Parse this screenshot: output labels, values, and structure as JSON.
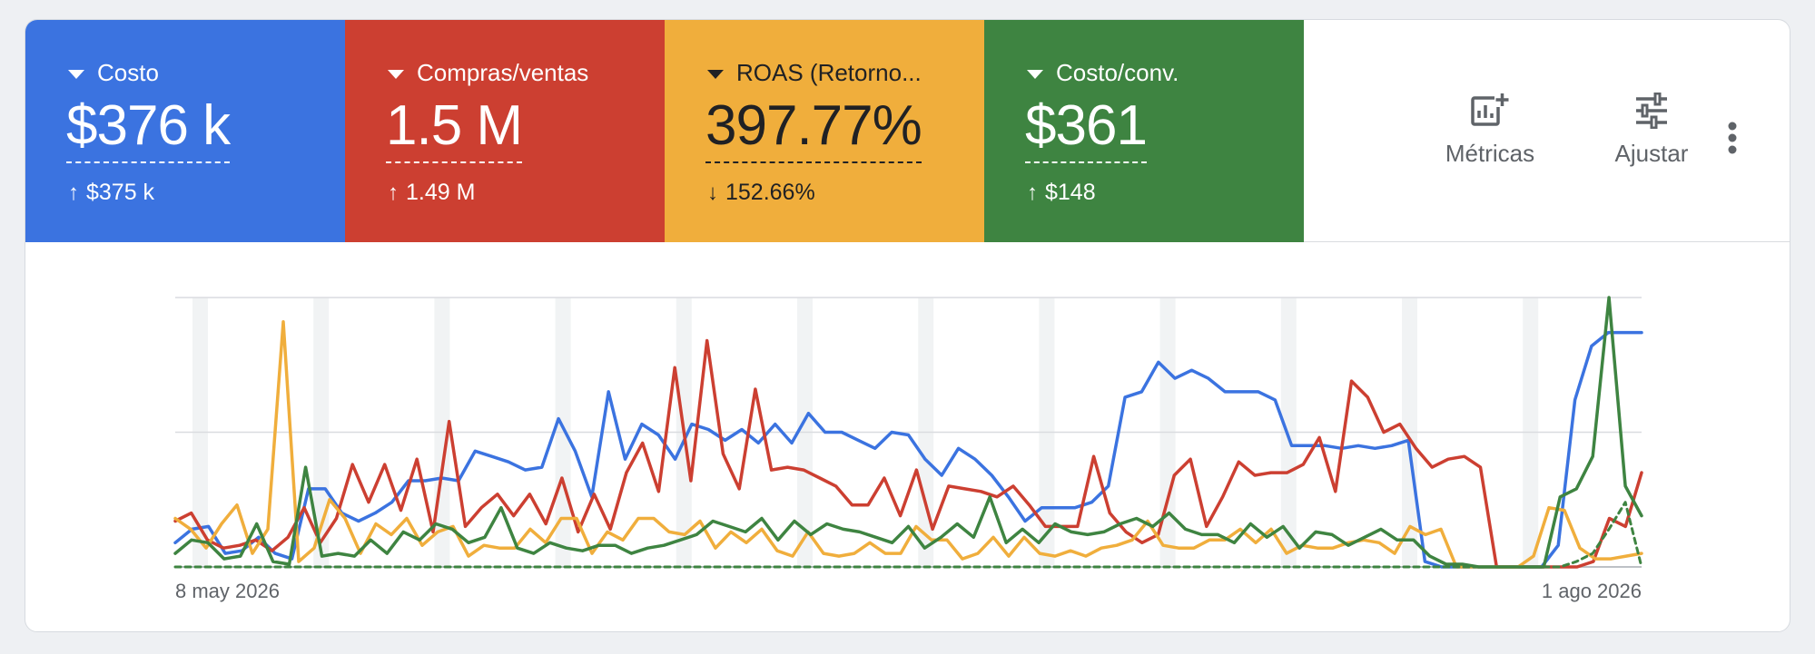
{
  "colors": {
    "cost": "#3b73e0",
    "conversions": "#cc3f31",
    "roas": "#f0ae3c",
    "cost_per_conv": "#3e8441"
  },
  "metrics": [
    {
      "label": "Costo",
      "value": "$376 k",
      "delta": "$375 k",
      "delta_direction": "up",
      "color": "#3b73e0"
    },
    {
      "label": "Compras/ventas",
      "value": "1.5 M",
      "delta": "1.49 M",
      "delta_direction": "up",
      "color": "#cc3f31"
    },
    {
      "label": "ROAS (Retorno...",
      "value": "397.77%",
      "delta": "152.66%",
      "delta_direction": "down",
      "color": "#f0ae3c"
    },
    {
      "label": "Costo/conv.",
      "value": "$361",
      "delta": "$148",
      "delta_direction": "up",
      "color": "#3e8441"
    }
  ],
  "toolbar": {
    "metrics_label": "Métricas",
    "adjust_label": "Ajustar",
    "metrics_icon": "add-chart-icon",
    "adjust_icon": "tune-icon",
    "more_icon": "more-vert-icon"
  },
  "chart_data": {
    "type": "line",
    "x_start_label": "8 may 2026",
    "x_end_label": "1 ago 2026",
    "ylim": [
      0,
      100
    ],
    "grid": true,
    "series": [
      {
        "color": "#3b73e0",
        "values": [
          9,
          14,
          15,
          5,
          6,
          11,
          5,
          3,
          29,
          29,
          20,
          17,
          20,
          24,
          32,
          32,
          33,
          32,
          43,
          41,
          39,
          36,
          37,
          55,
          43,
          26,
          65,
          40,
          53,
          49,
          40,
          53,
          51,
          47,
          51,
          46,
          53,
          46,
          57,
          50,
          50,
          47,
          44,
          50,
          49,
          40,
          34,
          44,
          40,
          34,
          26,
          17,
          22,
          22,
          22,
          24,
          30,
          63,
          65,
          76,
          70,
          73,
          70,
          65,
          65,
          65,
          62,
          45,
          45,
          45,
          44,
          45,
          44,
          45,
          47,
          2,
          0,
          0,
          0,
          0,
          0,
          0,
          0,
          8,
          62,
          82,
          87,
          87,
          87
        ]
      },
      {
        "color": "#cc3f31",
        "values": [
          17,
          20,
          10,
          7,
          8,
          10,
          6,
          11,
          22,
          9,
          18,
          38,
          24,
          38,
          21,
          40,
          13,
          54,
          15,
          22,
          27,
          19,
          27,
          16,
          33,
          13,
          27,
          14,
          35,
          46,
          28,
          74,
          32,
          84,
          42,
          29,
          66,
          36,
          37,
          36,
          33,
          30,
          23,
          23,
          33,
          19,
          36,
          14,
          30,
          29,
          28,
          26,
          30,
          23,
          15,
          15,
          15,
          41,
          20,
          13,
          9,
          12,
          34,
          40,
          15,
          26,
          39,
          34,
          35,
          35,
          38,
          48,
          28,
          69,
          63,
          50,
          53,
          44,
          37,
          40,
          41,
          37,
          0,
          0,
          0,
          0,
          0,
          0,
          2,
          18,
          15,
          35
        ]
      },
      {
        "color": "#f0ae3c",
        "values": [
          18,
          14,
          7,
          16,
          23,
          5,
          14,
          91,
          2,
          7,
          25,
          18,
          5,
          16,
          12,
          18,
          8,
          13,
          15,
          4,
          8,
          7,
          7,
          14,
          9,
          18,
          18,
          5,
          13,
          10,
          18,
          18,
          13,
          12,
          17,
          7,
          13,
          9,
          14,
          6,
          4,
          13,
          5,
          4,
          5,
          9,
          5,
          5,
          15,
          10,
          10,
          3,
          5,
          11,
          4,
          11,
          5,
          4,
          6,
          4,
          7,
          8,
          10,
          17,
          8,
          7,
          7,
          10,
          10,
          14,
          9,
          14,
          5,
          8,
          7,
          7,
          9,
          10,
          9,
          5,
          15,
          12,
          14,
          0,
          0,
          0,
          0,
          0,
          4,
          22,
          21,
          7,
          3,
          3,
          4,
          5
        ]
      },
      {
        "color": "#3e8441",
        "values": [
          5,
          10,
          9,
          3,
          4,
          16,
          2,
          1,
          37,
          4,
          5,
          4,
          10,
          5,
          13,
          10,
          16,
          14,
          9,
          11,
          22,
          7,
          5,
          9,
          7,
          6,
          8,
          8,
          5,
          7,
          8,
          10,
          12,
          17,
          15,
          13,
          18,
          10,
          17,
          12,
          16,
          14,
          13,
          11,
          9,
          15,
          7,
          11,
          16,
          11,
          26,
          9,
          14,
          9,
          16,
          13,
          12,
          13,
          16,
          18,
          15,
          20,
          14,
          12,
          12,
          9,
          16,
          11,
          15,
          7,
          13,
          12,
          8,
          11,
          14,
          10,
          10,
          4,
          1,
          1,
          0,
          0,
          0,
          0,
          0,
          26,
          29,
          41,
          100,
          30,
          19
        ]
      },
      {
        "color": "#3e8441",
        "dashed": true,
        "values": [
          0,
          0,
          0,
          0,
          0,
          0,
          0,
          0,
          0,
          0,
          0,
          0,
          0,
          0,
          0,
          0,
          0,
          0,
          0,
          0,
          0,
          0,
          0,
          0,
          0,
          0,
          0,
          0,
          0,
          0,
          0,
          0,
          0,
          0,
          0,
          0,
          0,
          0,
          0,
          0,
          0,
          0,
          0,
          0,
          0,
          0,
          0,
          0,
          0,
          0,
          0,
          0,
          0,
          0,
          0,
          0,
          0,
          0,
          0,
          0,
          0,
          0,
          0,
          0,
          0,
          0,
          0,
          0,
          0,
          0,
          0,
          0,
          0,
          0,
          0,
          0,
          0,
          0,
          0,
          0,
          0,
          0,
          0,
          0,
          0,
          0,
          2,
          5,
          14,
          24,
          0
        ]
      }
    ]
  }
}
